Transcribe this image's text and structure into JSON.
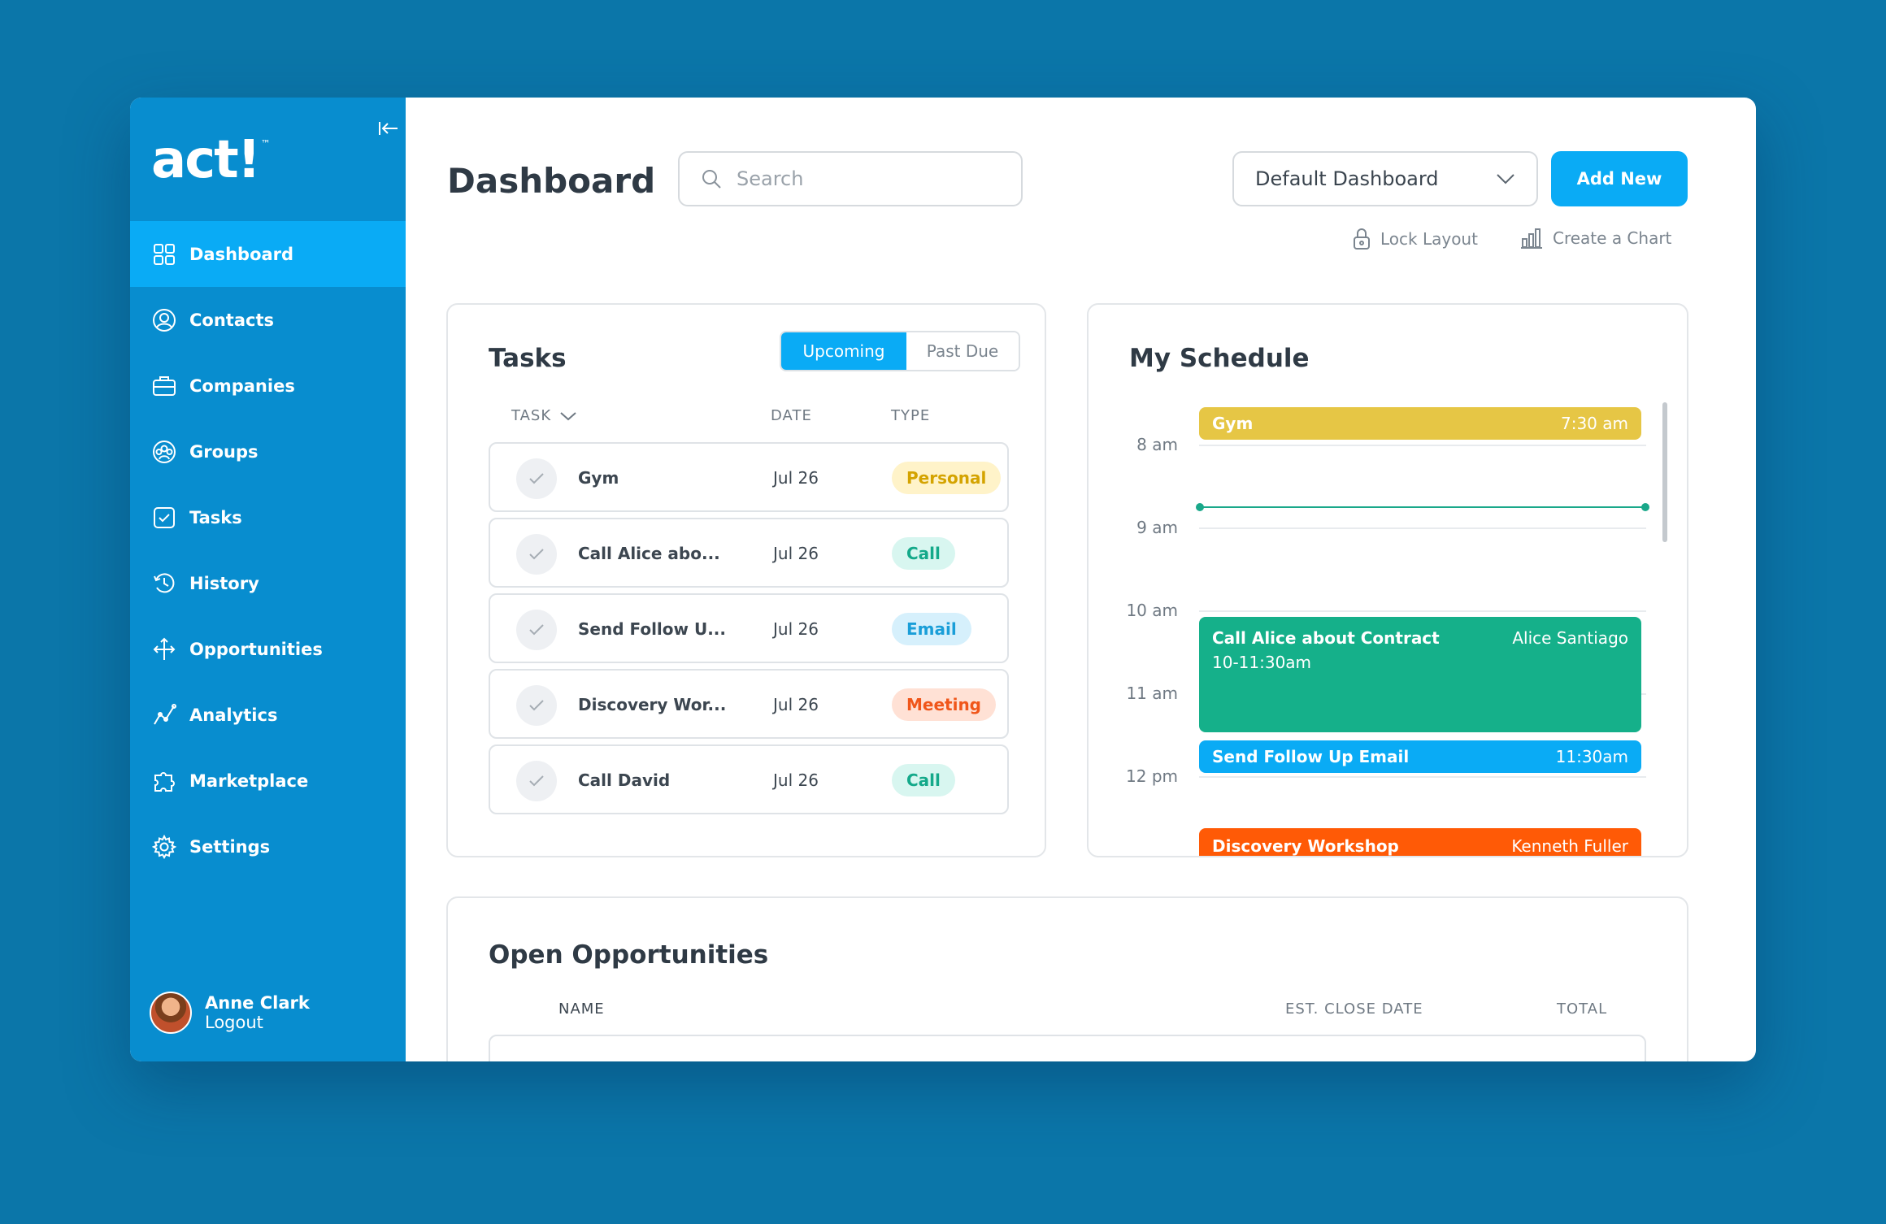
{
  "sidebar": {
    "logo": "act!",
    "logo_tm": "™",
    "items": [
      {
        "label": "Dashboard",
        "icon": "grid-icon"
      },
      {
        "label": "Contacts",
        "icon": "user-circle-icon"
      },
      {
        "label": "Companies",
        "icon": "briefcase-icon"
      },
      {
        "label": "Groups",
        "icon": "group-icon"
      },
      {
        "label": "Tasks",
        "icon": "checkbox-icon"
      },
      {
        "label": "History",
        "icon": "history-icon"
      },
      {
        "label": "Opportunities",
        "icon": "opportunity-icon"
      },
      {
        "label": "Analytics",
        "icon": "analytics-icon"
      },
      {
        "label": "Marketplace",
        "icon": "puzzle-icon"
      },
      {
        "label": "Settings",
        "icon": "gear-icon"
      }
    ],
    "user": {
      "name": "Anne Clark",
      "logout": "Logout"
    }
  },
  "header": {
    "title": "Dashboard",
    "search_placeholder": "Search",
    "dashboard_select": "Default Dashboard",
    "add_new": "Add New",
    "lock_layout": "Lock Layout",
    "create_chart": "Create a Chart"
  },
  "tasks": {
    "title": "Tasks",
    "tabs": {
      "upcoming": "Upcoming",
      "past_due": "Past Due"
    },
    "columns": {
      "task": "TASK",
      "date": "DATE",
      "type": "TYPE"
    },
    "rows": [
      {
        "name": "Gym",
        "date": "Jul 26",
        "type": "Personal"
      },
      {
        "name": "Call Alice abo...",
        "date": "Jul 26",
        "type": "Call"
      },
      {
        "name": "Send Follow U...",
        "date": "Jul 26",
        "type": "Email"
      },
      {
        "name": "Discovery Wor...",
        "date": "Jul 26",
        "type": "Meeting"
      },
      {
        "name": "Call David",
        "date": "Jul 26",
        "type": "Call"
      }
    ]
  },
  "schedule": {
    "title": "My Schedule",
    "hours": [
      "8 am",
      "9 am",
      "10 am",
      "11 am",
      "12 pm"
    ],
    "events": [
      {
        "title": "Gym",
        "time": "7:30 am",
        "color": "#e6c645"
      },
      {
        "title": "Call Alice about Contract",
        "time": "10-11:30am",
        "person": "Alice Santiago",
        "color": "#15b08a"
      },
      {
        "title": "Send Follow Up Email",
        "time": "11:30am",
        "color": "#0aabf5"
      },
      {
        "title": "Discovery Workshop",
        "person": "Kenneth Fuller",
        "color": "#ff5a06"
      }
    ]
  },
  "opportunities": {
    "title": "Open Opportunities",
    "columns": {
      "name": "NAME",
      "close_date": "EST. CLOSE DATE",
      "total": "TOTAL"
    }
  },
  "colors": {
    "sidebar": "#088dcf",
    "accent": "#0aabf5",
    "background": "#0b76a9"
  }
}
